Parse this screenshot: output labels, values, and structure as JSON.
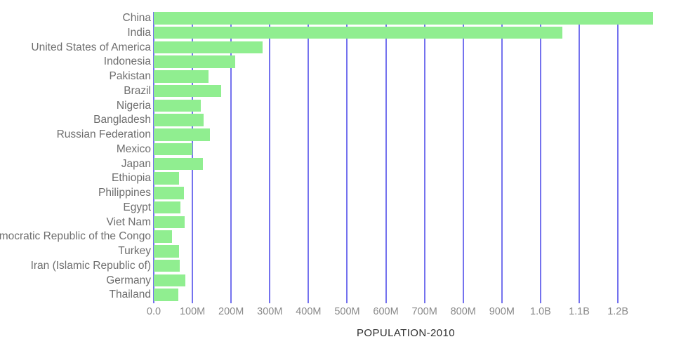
{
  "chart_data": {
    "type": "bar",
    "orientation": "horizontal",
    "title": "POPULATION-2010",
    "categories": [
      "China",
      "India",
      "United States of America",
      "Indonesia",
      "Pakistan",
      "Brazil",
      "Nigeria",
      "Bangladesh",
      "Russian Federation",
      "Mexico",
      "Japan",
      "Ethiopia",
      "Philippines",
      "Egypt",
      "Viet Nam",
      "Democratic Republic of the Congo",
      "Turkey",
      "Iran (Islamic Republic of)",
      "Germany",
      "Thailand"
    ],
    "values_millions": [
      1290,
      1056,
      282,
      211,
      142,
      175,
      122,
      128,
      146,
      100,
      127,
      66,
      78,
      69,
      80,
      48,
      65,
      67,
      82,
      63
    ],
    "x_tick_labels": [
      "0.0",
      "100M",
      "200M",
      "300M",
      "400M",
      "500M",
      "600M",
      "700M",
      "800M",
      "900M",
      "1.0B",
      "1.1B",
      "1.2B"
    ],
    "x_tick_values_millions": [
      0,
      100,
      200,
      300,
      400,
      500,
      600,
      700,
      800,
      900,
      1000,
      1100,
      1200
    ],
    "xlim_millions": [
      0,
      1345
    ],
    "grid": "vertical",
    "legend": "none",
    "colors": {
      "bar": "#90EE90",
      "gridline": "#7472EE",
      "y_label": "#6e6e6e",
      "x_tick_label": "#8a8a8a",
      "title": "#2e2e2e",
      "background": "#ffffff"
    }
  }
}
